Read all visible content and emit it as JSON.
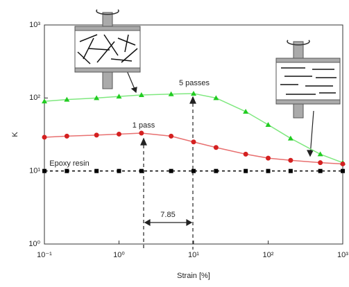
{
  "chart_data": {
    "type": "line",
    "xlabel": "Strain [%]",
    "ylabel": "K",
    "x": [
      0.1,
      0.2,
      0.5,
      1,
      2,
      5,
      10,
      20,
      50,
      100,
      200,
      500,
      1000
    ],
    "series": [
      {
        "name": "5 passes",
        "color": "#22cc22",
        "line_color": "#7fe87f",
        "marker": "triangle",
        "values": [
          90,
          95,
          100,
          105,
          110,
          113,
          115,
          100,
          65,
          43,
          28,
          17,
          13
        ]
      },
      {
        "name": "1 pass",
        "color": "#d42020",
        "line_color": "#e87070",
        "marker": "circle",
        "values": [
          29,
          30,
          31,
          32,
          33,
          30,
          25,
          21,
          17,
          15,
          14,
          13,
          12.5
        ]
      },
      {
        "name": "Epoxy resin",
        "color": "#000000",
        "line_color": "#000000",
        "marker": "square",
        "dashed": true,
        "values": [
          10,
          10,
          10,
          10,
          10,
          10,
          10,
          10,
          10,
          10,
          10,
          10,
          10
        ]
      }
    ],
    "annotations": [
      "7.85"
    ],
    "xscale": "log",
    "yscale": "log",
    "xlim": [
      0.1,
      1000
    ],
    "ylim": [
      1,
      1000
    ],
    "xticks": [
      {
        "value": 0.1,
        "label": "10⁻¹"
      },
      {
        "value": 1,
        "label": "10⁰"
      },
      {
        "value": 10,
        "label": "10¹"
      },
      {
        "value": 100,
        "label": "10²"
      },
      {
        "value": 1000,
        "label": "10³"
      }
    ],
    "yticks": [
      {
        "value": 1,
        "label": "10⁰"
      },
      {
        "value": 10,
        "label": "10¹"
      },
      {
        "value": 100,
        "label": "10²"
      },
      {
        "value": 1000,
        "label": "10³"
      }
    ]
  }
}
